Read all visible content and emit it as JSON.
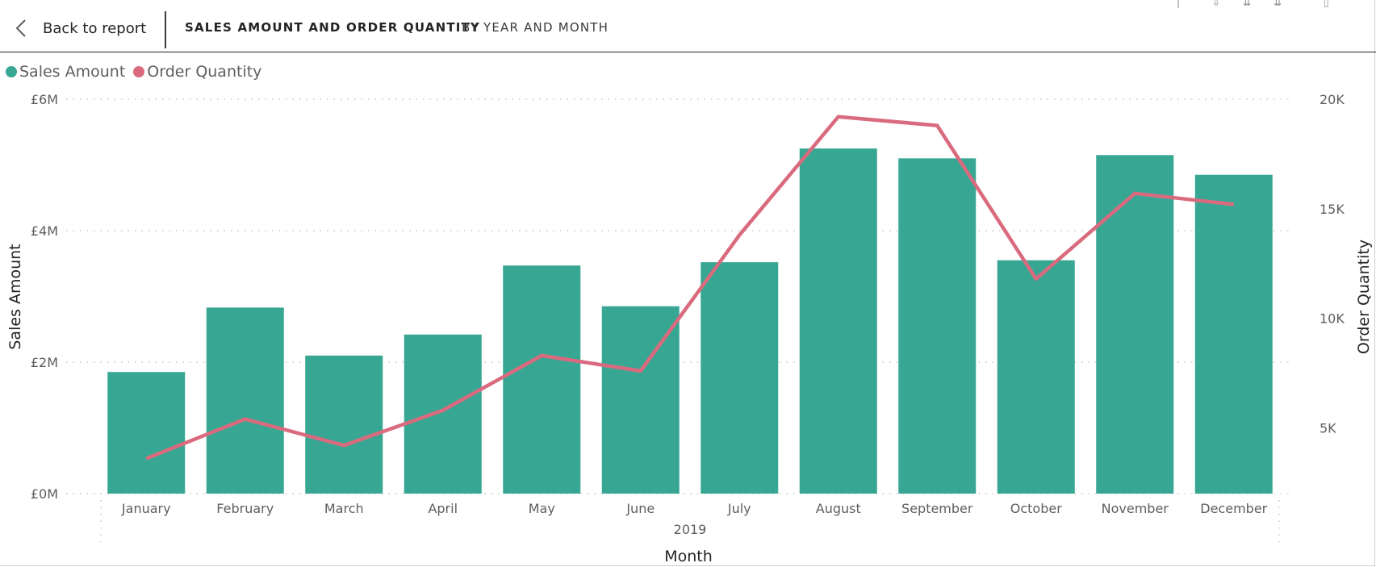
{
  "header": {
    "back_label": "Back to report",
    "title": "SALES AMOUNT AND ORDER QUANTITY",
    "subtitle": "BY YEAR AND MONTH"
  },
  "icons": {
    "back": "chevron-left-icon",
    "toolbar": [
      "drill-up-icon",
      "drill-down-icon",
      "expand-all-icon",
      "more-options-icon"
    ]
  },
  "colors": {
    "sales": "#37A794",
    "orders": "#DA6A7E"
  },
  "legend": {
    "items": [
      {
        "label": "Sales Amount",
        "color": "#37A794"
      },
      {
        "label": "Order Quantity",
        "color": "#DA6A7E"
      }
    ]
  },
  "chart_data": {
    "type": "bar",
    "categories": [
      "January",
      "February",
      "March",
      "April",
      "May",
      "June",
      "July",
      "August",
      "September",
      "October",
      "November",
      "December"
    ],
    "x_group_label": "2019",
    "xlabel": "Month",
    "ylabel": "Sales Amount",
    "y2label": "Order Quantity",
    "y_ticks": [
      "£0M",
      "£2M",
      "£4M",
      "£6M"
    ],
    "y_tick_values": [
      0,
      2,
      4,
      6
    ],
    "y2_ticks": [
      "5K",
      "10K",
      "15K",
      "20K"
    ],
    "y2_tick_values": [
      5000,
      10000,
      15000,
      20000
    ],
    "ylim": [
      0,
      6
    ],
    "y2lim": [
      2000,
      20000
    ],
    "grid": true,
    "legend_position": "top-left",
    "series": [
      {
        "name": "Sales Amount",
        "type": "bar",
        "unit": "£M",
        "axis": "left",
        "values": [
          1.85,
          2.83,
          2.1,
          2.42,
          3.47,
          2.85,
          3.52,
          5.25,
          5.1,
          3.55,
          5.15,
          4.85
        ]
      },
      {
        "name": "Order Quantity",
        "type": "line",
        "axis": "right",
        "values": [
          3600,
          5400,
          4200,
          5800,
          8300,
          7600,
          13800,
          19200,
          18800,
          11800,
          15700,
          15200
        ]
      }
    ]
  }
}
